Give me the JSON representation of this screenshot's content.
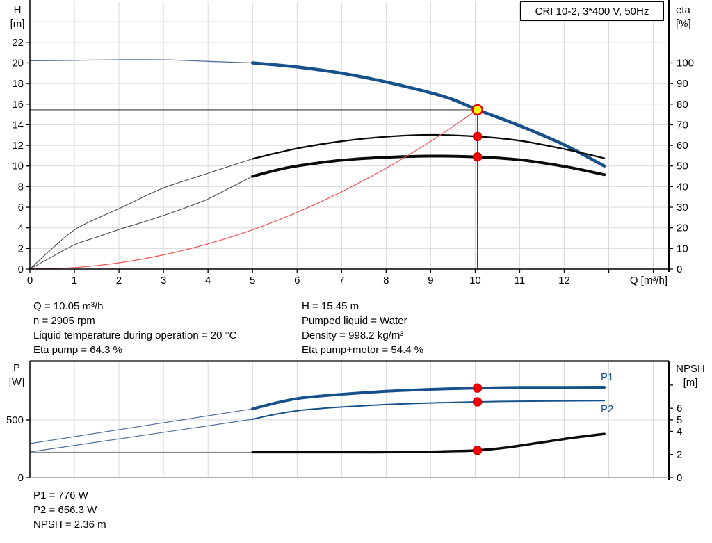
{
  "colors": {
    "blue": "#17518c",
    "blueThin": "#4f6f9c",
    "black": "#0a0a0a",
    "gray": "#4a4a4a",
    "grayLight": "#8a8a8a",
    "red": "#f10000",
    "redRing": "#c40000",
    "redLine": "#f25353",
    "yellow": "#ffff00",
    "grid": "#d9d9d9",
    "axis": "#000000",
    "dutyLine": "#3f3f3f",
    "bottomAxis2": "#8c8c8c"
  },
  "title_box": {
    "label": "CRI 10-2, 3*400 V, 50Hz"
  },
  "annotations": {
    "left": [
      "Q = 10.05 m³/h",
      "n = 2905 rpm",
      "Liquid temperature during operation = 20 °C",
      "Eta pump = 64.3 %"
    ],
    "right": [
      "H = 15.45 m",
      "Pumped liquid = Water",
      "Density = 998.2 kg/m³",
      "Eta pump+motor = 54.4 %"
    ],
    "bottom": [
      "P1 = 776 W",
      "P2 = 656.3 W",
      "NPSH = 2.36 m"
    ]
  },
  "chart_data": [
    {
      "id": "head-efficiency-chart",
      "type": "line",
      "title": "CRI 10-2, 3*400 V, 50Hz",
      "x_axis": {
        "label": "Q [m³/h]",
        "range": [
          0,
          14.35
        ],
        "ticks": [
          0,
          1,
          2,
          3,
          4,
          5,
          6,
          7,
          8,
          9,
          10,
          11,
          12
        ],
        "unlabeled_ticks": [
          13,
          14
        ]
      },
      "y_left": {
        "label": "H [m]",
        "label_lines": [
          "H",
          "[m]"
        ],
        "range": [
          0,
          25.9
        ],
        "ticks": [
          0,
          2,
          4,
          6,
          8,
          10,
          12,
          14,
          16,
          18,
          20,
          22
        ],
        "grid_extra": [
          24
        ]
      },
      "y_right": {
        "label": "eta [%]",
        "label_lines": [
          "eta",
          "[%]"
        ],
        "range": [
          0,
          129.5
        ],
        "ticks": [
          0,
          10,
          20,
          30,
          40,
          50,
          60,
          70,
          80,
          90,
          100
        ]
      },
      "series": [
        {
          "name": "head-curve-lead",
          "axis": "left",
          "color": "blueThin",
          "width": 1.3,
          "points": [
            [
              0,
              20.2
            ],
            [
              1,
              20.25
            ],
            [
              2,
              20.3
            ],
            [
              3,
              20.3
            ],
            [
              4,
              20.15
            ],
            [
              5,
              20.0
            ]
          ]
        },
        {
          "name": "head-curve",
          "axis": "left",
          "color": "blue",
          "width": 4.5,
          "points": [
            [
              5,
              20.0
            ],
            [
              6,
              19.6
            ],
            [
              7,
              19.0
            ],
            [
              8,
              18.15
            ],
            [
              9,
              17.1
            ],
            [
              9.5,
              16.45
            ],
            [
              10.05,
              15.45
            ],
            [
              11,
              13.9
            ],
            [
              12,
              12.05
            ],
            [
              12.9,
              10.0
            ]
          ]
        },
        {
          "name": "eta-pump-lead",
          "axis": "right",
          "color": "gray",
          "width": 1.1,
          "points": [
            [
              0,
              0
            ],
            [
              0.5,
              10
            ],
            [
              1,
              19
            ],
            [
              1.5,
              24.5
            ],
            [
              2,
              29.3
            ],
            [
              2.5,
              34.5
            ],
            [
              3,
              39.4
            ],
            [
              3.5,
              43
            ],
            [
              4,
              46.5
            ],
            [
              4.5,
              50
            ],
            [
              5,
              53.5
            ]
          ]
        },
        {
          "name": "eta-pump-curve",
          "axis": "right",
          "color": "black",
          "width": 2.3,
          "points": [
            [
              5,
              53.5
            ],
            [
              6,
              58.5
            ],
            [
              7,
              62
            ],
            [
              8,
              64.2
            ],
            [
              9,
              65.1
            ],
            [
              10.05,
              64.3
            ],
            [
              11,
              62.3
            ],
            [
              12,
              58.2
            ],
            [
              12.9,
              53.8
            ]
          ]
        },
        {
          "name": "eta-pump-motor-lead",
          "axis": "right",
          "color": "gray",
          "width": 1.1,
          "points": [
            [
              0,
              0
            ],
            [
              0.5,
              6
            ],
            [
              1,
              11.8
            ],
            [
              1.5,
              15.5
            ],
            [
              2,
              19.2
            ],
            [
              2.5,
              22.5
            ],
            [
              3,
              26
            ],
            [
              3.5,
              29.8
            ],
            [
              4,
              34
            ],
            [
              4.5,
              39.5
            ],
            [
              5,
              45
            ]
          ]
        },
        {
          "name": "eta-pump-motor-curve",
          "axis": "right",
          "color": "black",
          "width": 4,
          "points": [
            [
              5,
              45
            ],
            [
              5.5,
              47.8
            ],
            [
              6,
              50
            ],
            [
              7,
              52.8
            ],
            [
              8,
              54.2
            ],
            [
              9,
              54.8
            ],
            [
              10.05,
              54.4
            ],
            [
              11,
              53
            ],
            [
              12,
              49.8
            ],
            [
              12.9,
              45.8
            ]
          ]
        },
        {
          "name": "system-curve",
          "axis": "left",
          "color": "redLine",
          "width": 1.2,
          "points": [
            [
              0,
              0
            ],
            [
              1,
              0.15
            ],
            [
              2,
              0.61
            ],
            [
              3,
              1.38
            ],
            [
              4,
              2.45
            ],
            [
              5,
              3.82
            ],
            [
              6,
              5.51
            ],
            [
              7,
              7.5
            ],
            [
              8,
              9.79
            ],
            [
              9,
              12.39
            ],
            [
              10.05,
              15.45
            ]
          ]
        }
      ],
      "duty_point": {
        "q": 10.05,
        "h": 15.45
      },
      "markers": [
        {
          "name": "duty-point",
          "q": 10.05,
          "v": 15.45,
          "axis": "left",
          "style": "duty"
        },
        {
          "name": "eta-pump-duty-dot",
          "q": 10.05,
          "v": 64.3,
          "axis": "right",
          "style": "dot"
        },
        {
          "name": "eta-pump-motor-duty-dot",
          "q": 10.05,
          "v": 54.4,
          "axis": "right",
          "style": "dot"
        }
      ]
    },
    {
      "id": "power-npsh-chart",
      "type": "line",
      "x_axis": {
        "label": "",
        "range": [
          0,
          14.35
        ],
        "ticks": [],
        "unlabeled_ticks": []
      },
      "y_left": {
        "label": "P [W]",
        "label_lines": [
          "P",
          "[W]"
        ],
        "range": [
          0,
          1012
        ],
        "ticks": [
          0,
          500
        ]
      },
      "y_right": {
        "label": "NPSH [m]",
        "label_lines": [
          "NPSH",
          "[m]"
        ],
        "range": [
          0,
          10.1
        ],
        "ticks": [
          0,
          2,
          4,
          5,
          6
        ],
        "unlabeled_ticks": [
          8
        ]
      },
      "series": [
        {
          "name": "p1-lead",
          "axis": "left",
          "color": "blueThin",
          "width": 1.2,
          "points": [
            [
              0,
              295
            ],
            [
              5,
              596
            ]
          ]
        },
        {
          "name": "p1-curve",
          "axis": "left",
          "color": "blue",
          "width": 4,
          "points": [
            [
              5,
              596
            ],
            [
              5.5,
              645
            ],
            [
              6,
              685
            ],
            [
              6.5,
              706
            ],
            [
              7,
              722
            ],
            [
              8,
              748
            ],
            [
              9,
              765
            ],
            [
              10.05,
              776
            ],
            [
              11,
              781
            ],
            [
              12,
              782
            ],
            [
              12.9,
              783
            ]
          ]
        },
        {
          "name": "p2-lead",
          "axis": "left",
          "color": "blueThin",
          "width": 1.2,
          "points": [
            [
              0,
              222
            ],
            [
              5,
              506
            ]
          ]
        },
        {
          "name": "p2-curve",
          "axis": "left",
          "color": "blue",
          "width": 2,
          "points": [
            [
              5,
              506
            ],
            [
              5.5,
              548
            ],
            [
              6,
              580
            ],
            [
              6.5,
              598
            ],
            [
              7,
              612
            ],
            [
              8,
              633
            ],
            [
              9,
              647
            ],
            [
              10.05,
              656.3
            ],
            [
              11,
              662
            ],
            [
              12,
              665
            ],
            [
              12.9,
              667
            ]
          ]
        },
        {
          "name": "npsh-lead",
          "axis": "right",
          "color": "grayLight",
          "width": 1.1,
          "points": [
            [
              0,
              2.2
            ],
            [
              5,
              2.2
            ]
          ]
        },
        {
          "name": "npsh-curve",
          "axis": "right",
          "color": "black",
          "width": 3.5,
          "points": [
            [
              5,
              2.2
            ],
            [
              7,
              2.2
            ],
            [
              8,
              2.2
            ],
            [
              9,
              2.24
            ],
            [
              9.5,
              2.29
            ],
            [
              10.05,
              2.36
            ],
            [
              10.7,
              2.6
            ],
            [
              11.5,
              3.05
            ],
            [
              12.2,
              3.45
            ],
            [
              12.9,
              3.78
            ]
          ]
        }
      ],
      "markers": [
        {
          "name": "p1-duty-dot",
          "q": 10.05,
          "v": 776,
          "axis": "left",
          "style": "dot"
        },
        {
          "name": "p2-duty-dot",
          "q": 10.05,
          "v": 656.3,
          "axis": "left",
          "style": "dot"
        },
        {
          "name": "npsh-duty-dot",
          "q": 10.05,
          "v": 2.36,
          "axis": "right",
          "style": "dot"
        }
      ],
      "curve_labels": [
        {
          "text": "P1",
          "q": 12.82,
          "v": 843,
          "axis": "left"
        },
        {
          "text": "P2",
          "q": 12.82,
          "v": 566,
          "axis": "left"
        }
      ]
    }
  ]
}
